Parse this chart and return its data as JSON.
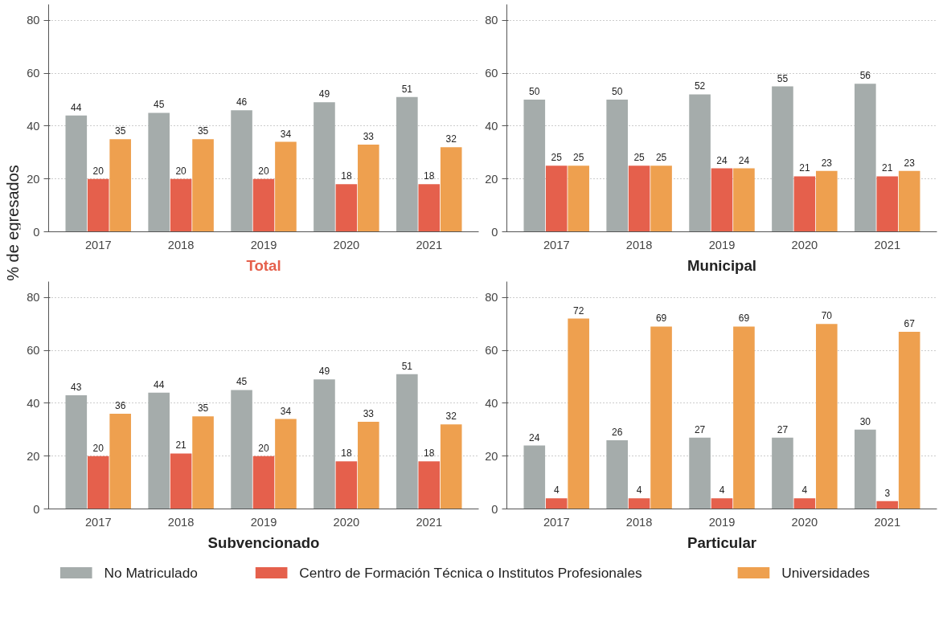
{
  "chart_data": [
    {
      "type": "bar",
      "title": "Total",
      "ylabel": "% de egresados",
      "categories": [
        "2017",
        "2018",
        "2019",
        "2020",
        "2021"
      ],
      "ylim": [
        0,
        86
      ],
      "yticks": [
        0,
        20,
        40,
        60,
        80
      ],
      "grid": "y",
      "data_labels": true,
      "legend": "bottom",
      "series": [
        {
          "name": "No Matriculado",
          "color": "#a5acab",
          "values": [
            44,
            45,
            46,
            49,
            51
          ]
        },
        {
          "name": "Centro de Formación Técnica o Institutos Profesionales",
          "color": "#e5604c",
          "values": [
            20,
            20,
            20,
            18,
            18
          ]
        },
        {
          "name": "Universidades",
          "color": "#eea04f",
          "values": [
            35,
            35,
            34,
            33,
            32
          ]
        }
      ]
    },
    {
      "type": "bar",
      "title": "Municipal",
      "categories": [
        "2017",
        "2018",
        "2019",
        "2020",
        "2021"
      ],
      "ylim": [
        0,
        86
      ],
      "yticks": [
        0,
        20,
        40,
        60,
        80
      ],
      "grid": "y",
      "data_labels": true,
      "series": [
        {
          "color": "#a5acab",
          "values": [
            50,
            50,
            52,
            55,
            56
          ]
        },
        {
          "color": "#e5604c",
          "values": [
            25,
            25,
            24,
            21,
            21
          ]
        },
        {
          "color": "#eea04f",
          "values": [
            25,
            25,
            24,
            23,
            23
          ]
        }
      ]
    },
    {
      "type": "bar",
      "title": "Subvencionado",
      "categories": [
        "2017",
        "2018",
        "2019",
        "2020",
        "2021"
      ],
      "ylim": [
        0,
        86
      ],
      "yticks": [
        0,
        20,
        40,
        60,
        80
      ],
      "grid": "y",
      "data_labels": true,
      "series": [
        {
          "color": "#a5acab",
          "values": [
            43,
            44,
            45,
            49,
            51
          ]
        },
        {
          "color": "#e5604c",
          "values": [
            20,
            21,
            20,
            18,
            18
          ]
        },
        {
          "color": "#eea04f",
          "values": [
            36,
            35,
            34,
            33,
            32
          ]
        }
      ]
    },
    {
      "type": "bar",
      "title": "Particular",
      "categories": [
        "2017",
        "2018",
        "2019",
        "2020",
        "2021"
      ],
      "ylim": [
        0,
        86
      ],
      "yticks": [
        0,
        20,
        40,
        60,
        80
      ],
      "grid": "y",
      "data_labels": true,
      "series": [
        {
          "color": "#a5acab",
          "values": [
            24,
            26,
            27,
            27,
            30
          ]
        },
        {
          "color": "#e5604c",
          "values": [
            4,
            4,
            4,
            4,
            3
          ]
        },
        {
          "color": "#eea04f",
          "values": [
            72,
            69,
            69,
            70,
            67
          ]
        }
      ]
    }
  ]
}
